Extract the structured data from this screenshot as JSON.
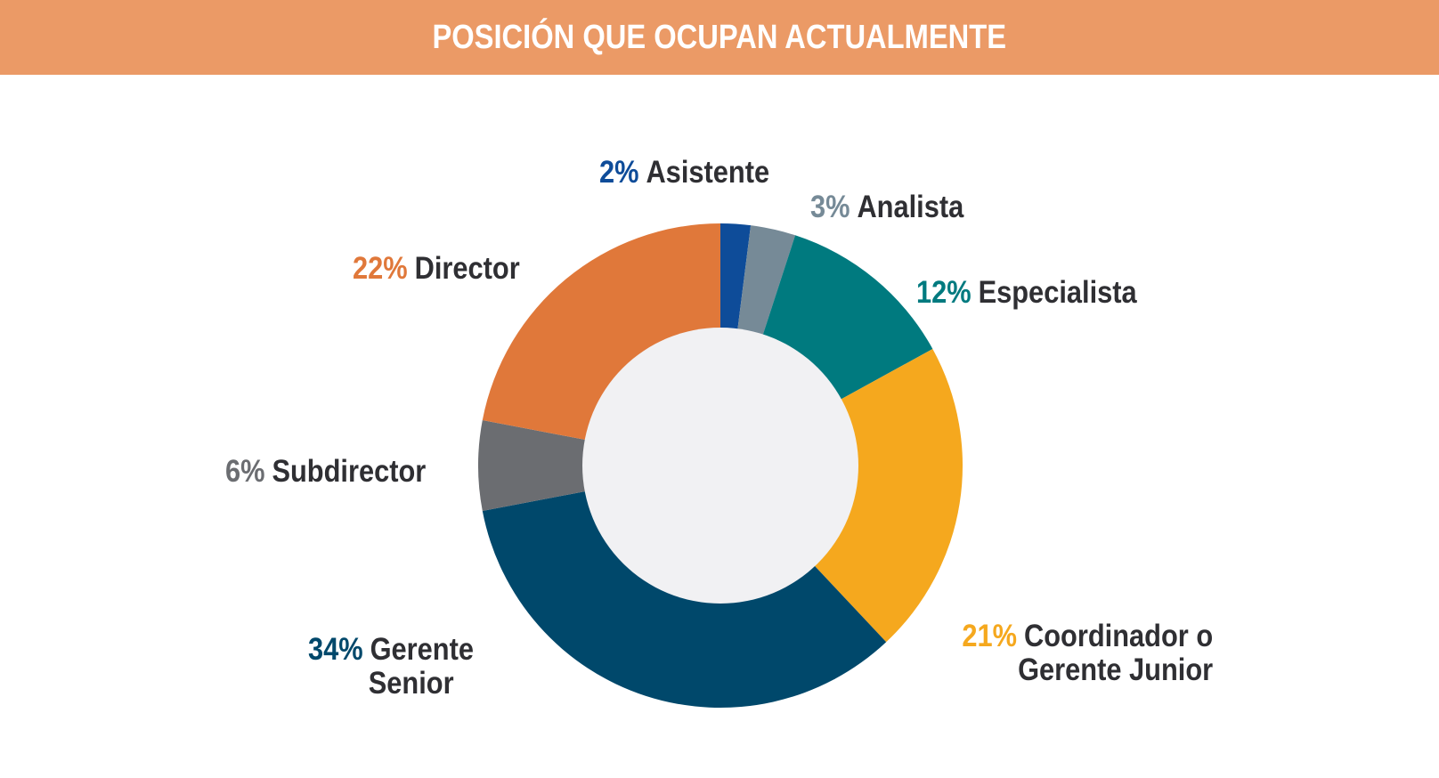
{
  "colors": {
    "title_bg": "#EB9A66",
    "inner_circle": "#F1F1F3",
    "label_text": "#2F2F33"
  },
  "chart_data": {
    "type": "pie",
    "variant": "donut",
    "title": "POSICIÓN QUE OCUPAN ACTUALMENTE",
    "unit": "%",
    "slices": [
      {
        "label": "Asistente",
        "value": 2,
        "value_text": "2%",
        "color": "#0E4C99"
      },
      {
        "label": "Analista",
        "value": 3,
        "value_text": "3%",
        "color": "#768A97"
      },
      {
        "label": "Especialista",
        "value": 12,
        "value_text": "12%",
        "color": "#007A7F"
      },
      {
        "label": "Coordinador o Gerente Junior",
        "label_lines": [
          "Coordinador o",
          "Gerente Junior"
        ],
        "value": 21,
        "value_text": "21%",
        "color": "#F5A81E"
      },
      {
        "label": "Gerente Senior",
        "label_lines": [
          "Gerente",
          "Senior"
        ],
        "value": 34,
        "value_text": "34%",
        "color": "#00486B"
      },
      {
        "label": "Subdirector",
        "value": 6,
        "value_text": "6%",
        "color": "#6B6D71"
      },
      {
        "label": "Director",
        "value": 22,
        "value_text": "22%",
        "color": "#E0783A"
      }
    ],
    "start": "12 o'clock",
    "direction": "clockwise"
  }
}
